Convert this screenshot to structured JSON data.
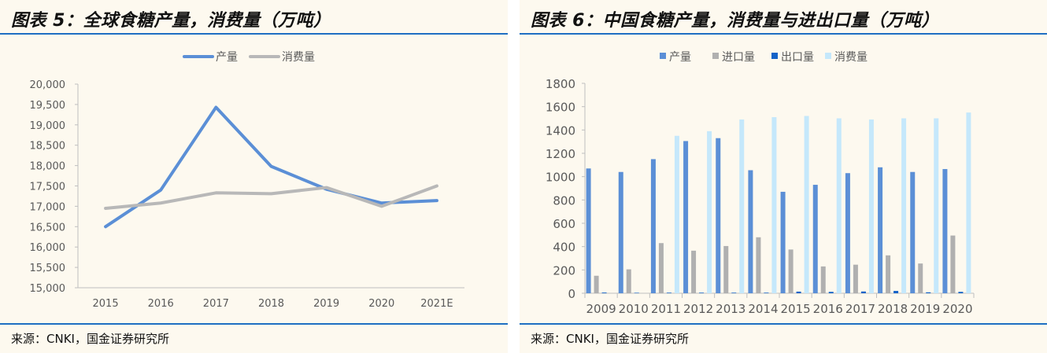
{
  "figures": [
    {
      "title": "图表 5：全球食糖产量，消费量（万吨）",
      "source": "来源：CNKI，国金证券研究所"
    },
    {
      "title": "图表 6：中国食糖产量，消费量与进出口量（万吨）",
      "source": "来源：CNKI，国金证券研究所"
    }
  ],
  "chart_data": [
    {
      "type": "line",
      "title": "",
      "xlabel": "",
      "ylabel": "",
      "categories": [
        "2015",
        "2016",
        "2017",
        "2018",
        "2019",
        "2020",
        "2021E"
      ],
      "y_tick_labels": [
        "15,000",
        "15,500",
        "16,000",
        "16,500",
        "17,000",
        "17,500",
        "18,000",
        "18,500",
        "19,000",
        "19,500",
        "20,000"
      ],
      "ylim": [
        15000,
        20000
      ],
      "grid": false,
      "legend": "top",
      "series": [
        {
          "name": "产量",
          "color": "#5b8fd6",
          "values": [
            16500,
            17400,
            19430,
            17980,
            17420,
            17080,
            17140
          ]
        },
        {
          "name": "消费量",
          "color": "#b8b8b8",
          "values": [
            16950,
            17080,
            17330,
            17310,
            17460,
            17000,
            17500
          ]
        }
      ]
    },
    {
      "type": "bar",
      "title": "",
      "xlabel": "",
      "ylabel": "",
      "categories": [
        "2009",
        "2010",
        "2011",
        "2012",
        "2013",
        "2014",
        "2015",
        "2016",
        "2017",
        "2018",
        "2019",
        "2020"
      ],
      "y_tick_labels": [
        "0",
        "200",
        "400",
        "600",
        "800",
        "1000",
        "1200",
        "1400",
        "1600",
        "1800"
      ],
      "ylim": [
        0,
        1800
      ],
      "grid": false,
      "legend": "top",
      "series": [
        {
          "name": "产量",
          "color": "#5b8fd6",
          "values": [
            1070,
            1040,
            1150,
            1305,
            1330,
            1055,
            870,
            930,
            1030,
            1080,
            1040,
            1065
          ]
        },
        {
          "name": "进口量",
          "color": "#b0b0b0",
          "values": [
            150,
            205,
            430,
            365,
            405,
            480,
            375,
            230,
            245,
            325,
            255,
            495
          ]
        },
        {
          "name": "出口量",
          "color": "#1463c8",
          "values": [
            6,
            4,
            5,
            5,
            5,
            5,
            14,
            12,
            15,
            20,
            8,
            12
          ]
        },
        {
          "name": "消费量",
          "color": "#c5e8fb",
          "values": [
            0,
            0,
            1350,
            1390,
            1490,
            1510,
            1520,
            1500,
            1490,
            1500,
            1500,
            1550
          ]
        }
      ]
    }
  ]
}
